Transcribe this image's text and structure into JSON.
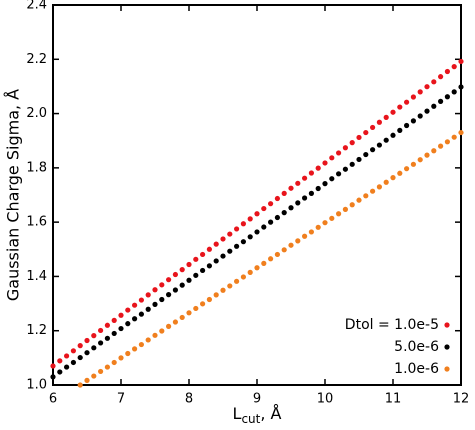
{
  "chart_data": {
    "type": "scatter",
    "ylabel": "Gaussian Charge Sigma, Å",
    "xlabel": "L",
    "xlabel_subscript": "cut",
    "xlabel_suffix": ", Å",
    "xlim": [
      6,
      12
    ],
    "ylim": [
      1.0,
      2.4
    ],
    "xticks": [
      6,
      7,
      8,
      9,
      10,
      11,
      12
    ],
    "yticks": [
      {
        "value": 1.0,
        "label": "1.0"
      },
      1.2,
      1.4,
      1.6,
      1.8,
      {
        "value": 2.0,
        "label": "2.0"
      },
      2.2,
      2.4
    ],
    "legend": "lower right",
    "x": [
      6,
      6.1,
      6.2,
      6.3,
      6.4,
      6.5,
      6.6,
      6.7,
      6.8,
      6.9,
      7,
      7.1,
      7.2,
      7.3,
      7.4,
      7.5,
      7.6,
      7.7,
      7.8,
      7.9,
      8,
      8.1,
      8.2,
      8.3,
      8.4,
      8.5,
      8.6,
      8.7,
      8.8,
      8.9,
      9,
      9.1,
      9.2,
      9.3,
      9.4,
      9.5,
      9.6,
      9.7,
      9.8,
      9.9,
      10,
      10.1,
      10.2,
      10.3,
      10.4,
      10.5,
      10.6,
      10.7,
      10.8,
      10.9,
      11,
      11.1,
      11.2,
      11.3,
      11.4,
      11.5,
      11.6,
      11.7,
      11.8,
      11.9,
      12
    ],
    "series": [
      {
        "name": "Dtol = 1.0e-5",
        "color": "#e8141c",
        "values": [
          1.07,
          1.089,
          1.107,
          1.126,
          1.145,
          1.164,
          1.182,
          1.201,
          1.22,
          1.238,
          1.257,
          1.276,
          1.294,
          1.313,
          1.332,
          1.351,
          1.369,
          1.388,
          1.407,
          1.425,
          1.444,
          1.463,
          1.481,
          1.5,
          1.519,
          1.538,
          1.556,
          1.575,
          1.594,
          1.612,
          1.631,
          1.65,
          1.668,
          1.687,
          1.706,
          1.725,
          1.743,
          1.762,
          1.781,
          1.799,
          1.818,
          1.837,
          1.855,
          1.874,
          1.893,
          1.912,
          1.93,
          1.949,
          1.968,
          1.986,
          2.005,
          2.024,
          2.042,
          2.061,
          2.08,
          2.099,
          2.117,
          2.136,
          2.155,
          2.173,
          2.192
        ]
      },
      {
        "name": "5.0e-6",
        "color": "#000000",
        "values": [
          1.03,
          1.048,
          1.066,
          1.083,
          1.101,
          1.119,
          1.137,
          1.155,
          1.172,
          1.19,
          1.208,
          1.226,
          1.244,
          1.261,
          1.279,
          1.297,
          1.315,
          1.333,
          1.35,
          1.368,
          1.386,
          1.404,
          1.422,
          1.439,
          1.457,
          1.475,
          1.493,
          1.511,
          1.528,
          1.546,
          1.564,
          1.582,
          1.6,
          1.617,
          1.635,
          1.653,
          1.671,
          1.689,
          1.706,
          1.724,
          1.742,
          1.76,
          1.778,
          1.795,
          1.813,
          1.831,
          1.849,
          1.867,
          1.884,
          1.902,
          1.92,
          1.938,
          1.956,
          1.973,
          1.991,
          2.009,
          2.027,
          2.045,
          2.062,
          2.08,
          2.098
        ]
      },
      {
        "name": "1.0e-6",
        "color": "#f07f1e",
        "values": [
          null,
          null,
          null,
          null,
          1.0,
          1.017,
          1.033,
          1.05,
          1.066,
          1.083,
          1.1,
          1.116,
          1.133,
          1.149,
          1.166,
          1.183,
          1.199,
          1.216,
          1.232,
          1.249,
          1.266,
          1.282,
          1.299,
          1.315,
          1.332,
          1.349,
          1.365,
          1.382,
          1.398,
          1.415,
          1.432,
          1.448,
          1.465,
          1.481,
          1.498,
          1.515,
          1.531,
          1.548,
          1.564,
          1.581,
          1.598,
          1.614,
          1.631,
          1.647,
          1.664,
          1.681,
          1.697,
          1.714,
          1.73,
          1.747,
          1.764,
          1.78,
          1.797,
          1.813,
          1.83,
          1.847,
          1.863,
          1.88,
          1.896,
          1.913,
          1.93
        ]
      }
    ]
  }
}
